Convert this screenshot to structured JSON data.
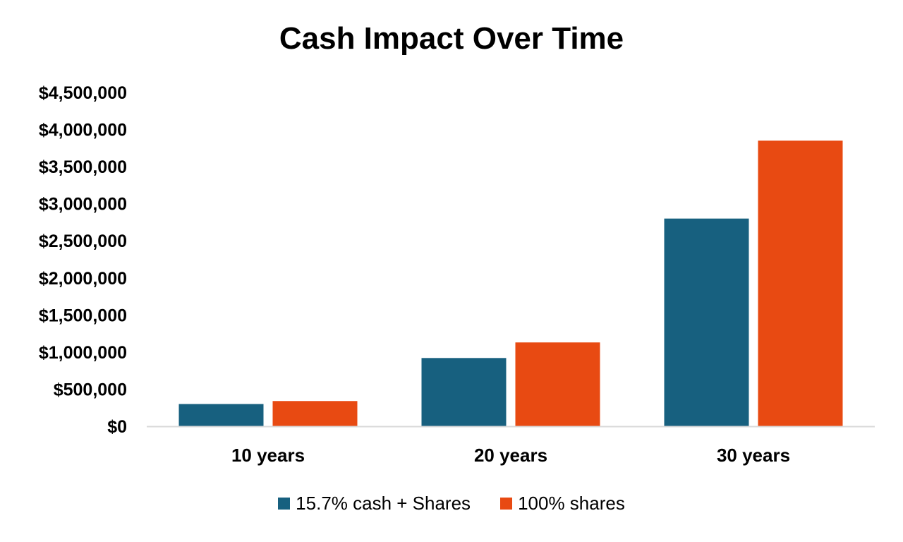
{
  "colors": {
    "series_1": "#17607F",
    "series_2": "#E84A12",
    "axis": "#D9D9D9"
  },
  "chart_data": {
    "type": "bar",
    "title": "Cash Impact Over Time",
    "xlabel": "",
    "ylabel": "",
    "categories": [
      "10 years",
      "20 years",
      "30 years"
    ],
    "series": [
      {
        "name": "15.7% cash + Shares",
        "values": [
          300000,
          920000,
          2800000
        ]
      },
      {
        "name": "100% shares",
        "values": [
          340000,
          1130000,
          3850000
        ]
      }
    ],
    "ylim": [
      0,
      4500000
    ],
    "y_ticks": [
      "$0",
      "$500,000",
      "$1,000,000",
      "$1,500,000",
      "$2,000,000",
      "$2,500,000",
      "$3,000,000",
      "$3,500,000",
      "$4,000,000",
      "$4,500,000"
    ],
    "grid": false,
    "legend_position": "bottom"
  }
}
